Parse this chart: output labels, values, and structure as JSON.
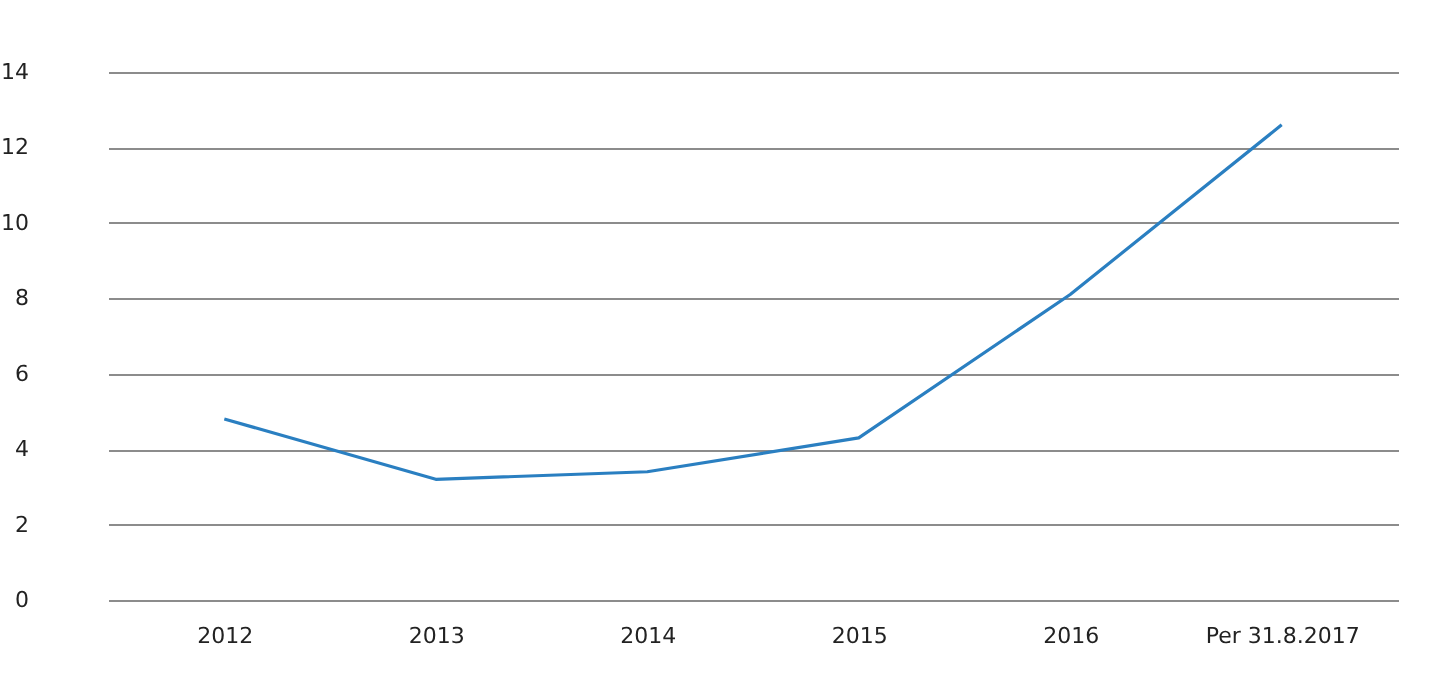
{
  "chart_data": {
    "type": "line",
    "categories": [
      "2012",
      "2013",
      "2014",
      "2015",
      "2016",
      "Per 31.8.2017"
    ],
    "series": [
      {
        "color": "#2a7fc1",
        "values": [
          4.8,
          3.2,
          3.4,
          4.3,
          8.1,
          12.6
        ]
      }
    ],
    "ylim": [
      0,
      14
    ],
    "yticks": [
      0,
      2,
      4,
      6,
      8,
      10,
      12,
      14
    ],
    "grid": "y",
    "legend": false,
    "marker": "none",
    "line_style": "solid"
  }
}
